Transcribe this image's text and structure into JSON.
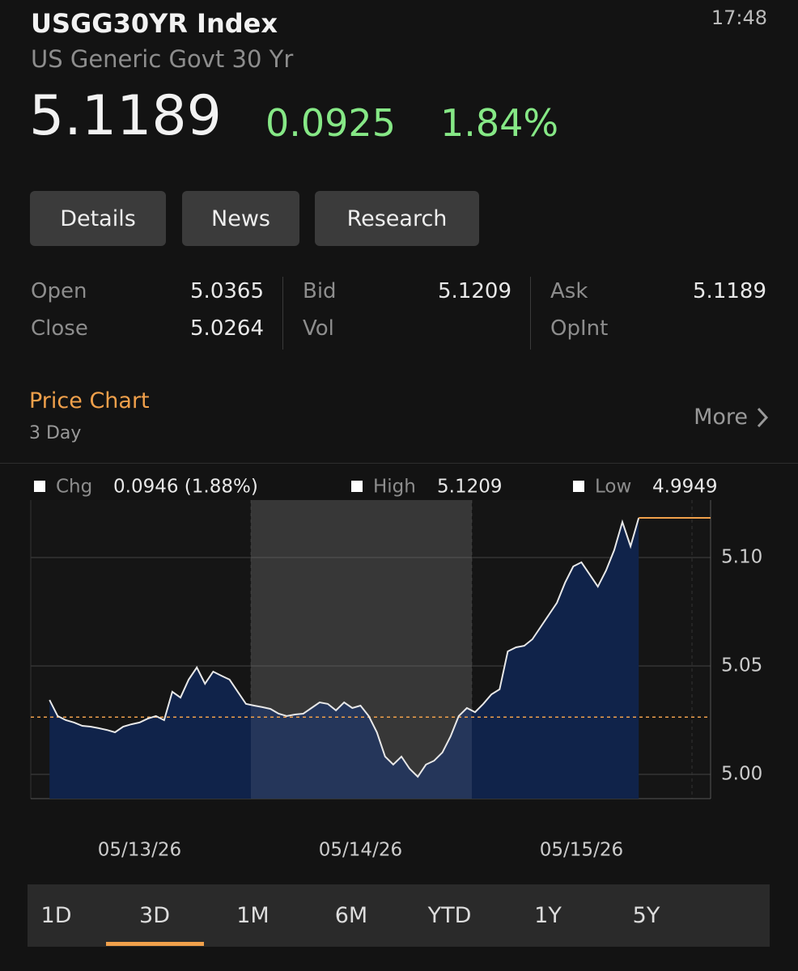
{
  "header": {
    "title": "USGG30YR Index",
    "subtitle": "US Generic Govt 30 Yr",
    "time": "17:48"
  },
  "quote": {
    "price": "5.1189",
    "change": "0.0925",
    "change_percent": "1.84%"
  },
  "buttons": [
    "Details",
    "News",
    "Research"
  ],
  "stats": [
    {
      "label": "Open",
      "value": "5.0365"
    },
    {
      "label": "Close",
      "value": "5.0264"
    },
    {
      "label": "Bid",
      "value": "5.1209"
    },
    {
      "label": "Vol"
    },
    {
      "label": "Ask",
      "value": "5.1189"
    },
    {
      "label": "OpInt"
    }
  ],
  "section": {
    "title": "Price Chart",
    "subtitle": "3 Day",
    "more": "More"
  },
  "chart_data": {
    "type": "area",
    "legend": [
      {
        "label": "Chg",
        "value": "0.0946 (1.88%)"
      },
      {
        "label": "High",
        "value": "5.1209"
      },
      {
        "label": "Low",
        "value": "4.9949"
      }
    ],
    "categories": [
      null,
      null,
      null,
      null,
      null,
      null,
      null,
      null,
      null,
      null,
      null,
      null,
      null,
      "05/13/26",
      null,
      null,
      null,
      null,
      null,
      null,
      null,
      null,
      null,
      null,
      null,
      null,
      null,
      null,
      null,
      null,
      null,
      null,
      null,
      null,
      null,
      null,
      null,
      null,
      null,
      null,
      "05/14/26",
      null,
      null,
      null,
      null,
      null,
      null,
      null,
      null,
      null,
      null,
      null,
      null,
      null,
      null,
      null,
      null,
      null,
      null,
      null,
      null,
      null,
      null,
      null,
      null,
      null,
      null,
      "05/15/26",
      null,
      null,
      null,
      null,
      null,
      null,
      null,
      null,
      null,
      null,
      null,
      null,
      null,
      null,
      null,
      null
    ],
    "values": [
      null,
      null,
      5.0343,
      5.0269,
      5.025,
      5.0239,
      5.0224,
      5.022,
      5.0213,
      5.0205,
      5.0194,
      5.022,
      5.0231,
      5.0239,
      5.0257,
      5.0269,
      5.025,
      5.0381,
      5.0354,
      5.0437,
      5.0493,
      5.0418,
      5.0474,
      5.0455,
      5.0437,
      5.0381,
      5.0325,
      5.0317,
      5.031,
      5.0302,
      5.028,
      5.0269,
      5.0276,
      5.028,
      5.0306,
      5.0332,
      5.0325,
      5.0295,
      5.0332,
      5.0306,
      5.0317,
      5.0269,
      5.0194,
      5.0082,
      5.0045,
      5.0082,
      5.0026,
      4.9989,
      5.0045,
      5.0063,
      5.0101,
      5.0175,
      5.0269,
      5.0306,
      5.0287,
      5.0325,
      5.0369,
      5.0392,
      5.0567,
      5.0586,
      5.0593,
      5.0623,
      5.0679,
      5.0735,
      5.0791,
      5.0884,
      5.0959,
      5.0978,
      5.0922,
      5.0866,
      5.094,
      5.1034,
      5.1164,
      5.1052,
      5.1183,
      null,
      null,
      null,
      null,
      null,
      null,
      null,
      null,
      null
    ],
    "ylim": [
      4.9888,
      5.1265
    ],
    "yticks": [
      {
        "value": 5,
        "label": "5.00"
      },
      5.05,
      {
        "value": 5.1,
        "label": "5.10"
      }
    ],
    "reference_line": 5.0264,
    "line_color": "#e8e8e8",
    "area_color": "#10234a",
    "reference_color": "#f0a04b",
    "grid": true
  },
  "tabs": [
    "1D",
    "3D",
    "1M",
    "6M",
    "YTD",
    "1Y",
    "5Y"
  ],
  "selected_tab": 1
}
